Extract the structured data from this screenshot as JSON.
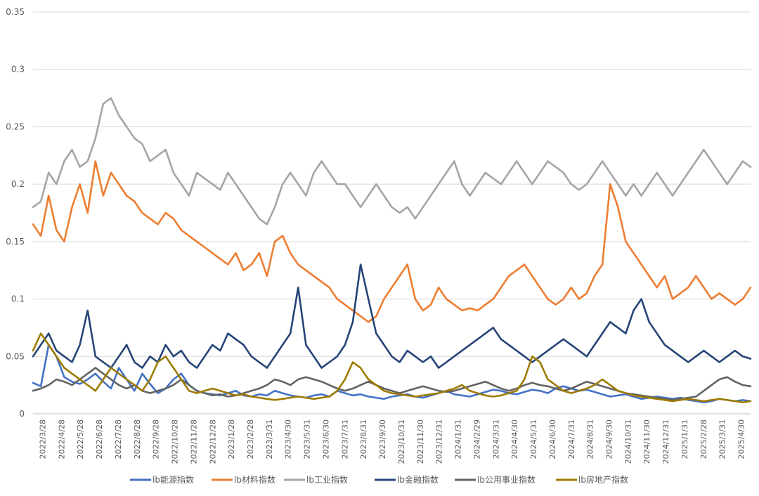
{
  "chart_data": {
    "type": "line",
    "title": "",
    "xlabel": "",
    "ylabel": "",
    "ylim": [
      0,
      0.35
    ],
    "y_ticks": [
      "0",
      "0.05",
      "0.1",
      "0.15",
      "0.2",
      "0.25",
      "0.3",
      "0.35"
    ],
    "x_tick_labels": [
      "2022/3/28",
      "2022/4/28",
      "2022/5/28",
      "2022/6/28",
      "2022/7/28",
      "2022/8/28",
      "2022/9/28",
      "2022/10/28",
      "2022/11/28",
      "2022/12/28",
      "2023/1/28",
      "2023/2/28",
      "2023/3/31",
      "2023/4/30",
      "2023/5/31",
      "2023/6/30",
      "2023/7/31",
      "2023/8/31",
      "2023/9/30",
      "2023/10/31",
      "2023/11/30",
      "2023/12/31",
      "2024/1/31",
      "2024/2/29",
      "2024/3/31",
      "2024/4/30",
      "2024/5/31",
      "2024/6/30",
      "2024/7/31",
      "2024/8/31",
      "2024/9/30",
      "2024/10/31",
      "2024/11/30",
      "2024/12/31",
      "2025/1/31",
      "2025/2/28",
      "2025/3/31",
      "2025/4/30"
    ],
    "gridlines": "horizontal",
    "legend_position": "bottom",
    "series": [
      {
        "name": "lb能源指数",
        "color": "#4472C4",
        "values": [
          0.027,
          0.024,
          0.06,
          0.05,
          0.032,
          0.028,
          0.026,
          0.03,
          0.035,
          0.028,
          0.022,
          0.04,
          0.03,
          0.02,
          0.035,
          0.026,
          0.018,
          0.022,
          0.03,
          0.035,
          0.025,
          0.02,
          0.018,
          0.017,
          0.016,
          0.018,
          0.02,
          0.016,
          0.015,
          0.017,
          0.016,
          0.02,
          0.018,
          0.016,
          0.015,
          0.014,
          0.016,
          0.017,
          0.015,
          0.02,
          0.018,
          0.016,
          0.017,
          0.015,
          0.014,
          0.013,
          0.015,
          0.016,
          0.017,
          0.015,
          0.014,
          0.016,
          0.018,
          0.02,
          0.017,
          0.016,
          0.015,
          0.017,
          0.019,
          0.021,
          0.02,
          0.018,
          0.017,
          0.019,
          0.021,
          0.02,
          0.018,
          0.022,
          0.024,
          0.022,
          0.02,
          0.021,
          0.019,
          0.017,
          0.015,
          0.016,
          0.017,
          0.015,
          0.013,
          0.014,
          0.015,
          0.014,
          0.013,
          0.014,
          0.012,
          0.011,
          0.01,
          0.011,
          0.013,
          0.012,
          0.011,
          0.012,
          0.011
        ]
      },
      {
        "name": "lb材料指数",
        "color": "#ED7D31",
        "values": [
          0.165,
          0.155,
          0.19,
          0.16,
          0.15,
          0.18,
          0.2,
          0.175,
          0.22,
          0.19,
          0.21,
          0.2,
          0.19,
          0.185,
          0.175,
          0.17,
          0.165,
          0.175,
          0.17,
          0.16,
          0.155,
          0.15,
          0.145,
          0.14,
          0.135,
          0.13,
          0.14,
          0.125,
          0.13,
          0.14,
          0.12,
          0.15,
          0.155,
          0.14,
          0.13,
          0.125,
          0.12,
          0.115,
          0.11,
          0.1,
          0.095,
          0.09,
          0.085,
          0.08,
          0.085,
          0.1,
          0.11,
          0.12,
          0.13,
          0.1,
          0.09,
          0.095,
          0.11,
          0.1,
          0.095,
          0.09,
          0.092,
          0.09,
          0.095,
          0.1,
          0.11,
          0.12,
          0.125,
          0.13,
          0.12,
          0.11,
          0.1,
          0.095,
          0.1,
          0.11,
          0.1,
          0.105,
          0.12,
          0.13,
          0.2,
          0.18,
          0.15,
          0.14,
          0.13,
          0.12,
          0.11,
          0.12,
          0.1,
          0.105,
          0.11,
          0.12,
          0.11,
          0.1,
          0.105,
          0.1,
          0.095,
          0.1,
          0.11
        ]
      },
      {
        "name": "lb工业指数",
        "color": "#A5A5A5",
        "values": [
          0.18,
          0.185,
          0.21,
          0.2,
          0.22,
          0.23,
          0.215,
          0.22,
          0.24,
          0.27,
          0.275,
          0.26,
          0.25,
          0.24,
          0.235,
          0.22,
          0.225,
          0.23,
          0.21,
          0.2,
          0.19,
          0.21,
          0.205,
          0.2,
          0.195,
          0.21,
          0.2,
          0.19,
          0.18,
          0.17,
          0.165,
          0.18,
          0.2,
          0.21,
          0.2,
          0.19,
          0.21,
          0.22,
          0.21,
          0.2,
          0.2,
          0.19,
          0.18,
          0.19,
          0.2,
          0.19,
          0.18,
          0.175,
          0.18,
          0.17,
          0.18,
          0.19,
          0.2,
          0.21,
          0.22,
          0.2,
          0.19,
          0.2,
          0.21,
          0.205,
          0.2,
          0.21,
          0.22,
          0.21,
          0.2,
          0.21,
          0.22,
          0.215,
          0.21,
          0.2,
          0.195,
          0.2,
          0.21,
          0.22,
          0.21,
          0.2,
          0.19,
          0.2,
          0.19,
          0.2,
          0.21,
          0.2,
          0.19,
          0.2,
          0.21,
          0.22,
          0.23,
          0.22,
          0.21,
          0.2,
          0.21,
          0.22,
          0.215
        ]
      },
      {
        "name": "lb金融指数",
        "color": "#264478",
        "values": [
          0.05,
          0.06,
          0.07,
          0.055,
          0.05,
          0.045,
          0.06,
          0.09,
          0.05,
          0.045,
          0.04,
          0.05,
          0.06,
          0.045,
          0.04,
          0.05,
          0.045,
          0.06,
          0.05,
          0.055,
          0.045,
          0.04,
          0.05,
          0.06,
          0.055,
          0.07,
          0.065,
          0.06,
          0.05,
          0.045,
          0.04,
          0.05,
          0.06,
          0.07,
          0.11,
          0.06,
          0.05,
          0.04,
          0.045,
          0.05,
          0.06,
          0.08,
          0.13,
          0.1,
          0.07,
          0.06,
          0.05,
          0.045,
          0.055,
          0.05,
          0.045,
          0.05,
          0.04,
          0.045,
          0.05,
          0.055,
          0.06,
          0.065,
          0.07,
          0.075,
          0.065,
          0.06,
          0.055,
          0.05,
          0.045,
          0.05,
          0.055,
          0.06,
          0.065,
          0.06,
          0.055,
          0.05,
          0.06,
          0.07,
          0.08,
          0.075,
          0.07,
          0.09,
          0.1,
          0.08,
          0.07,
          0.06,
          0.055,
          0.05,
          0.045,
          0.05,
          0.055,
          0.05,
          0.045,
          0.05,
          0.055,
          0.05,
          0.048
        ]
      },
      {
        "name": "lb公用事业指数",
        "color": "#636363",
        "values": [
          0.02,
          0.022,
          0.025,
          0.03,
          0.028,
          0.025,
          0.03,
          0.035,
          0.04,
          0.035,
          0.03,
          0.025,
          0.022,
          0.025,
          0.02,
          0.018,
          0.02,
          0.022,
          0.025,
          0.03,
          0.025,
          0.02,
          0.018,
          0.016,
          0.017,
          0.015,
          0.016,
          0.018,
          0.02,
          0.022,
          0.025,
          0.03,
          0.028,
          0.025,
          0.03,
          0.032,
          0.03,
          0.028,
          0.025,
          0.022,
          0.02,
          0.022,
          0.025,
          0.028,
          0.025,
          0.022,
          0.02,
          0.018,
          0.02,
          0.022,
          0.024,
          0.022,
          0.02,
          0.019,
          0.02,
          0.022,
          0.024,
          0.026,
          0.028,
          0.025,
          0.022,
          0.02,
          0.022,
          0.025,
          0.027,
          0.025,
          0.024,
          0.022,
          0.02,
          0.022,
          0.025,
          0.028,
          0.026,
          0.024,
          0.022,
          0.02,
          0.018,
          0.017,
          0.016,
          0.015,
          0.014,
          0.013,
          0.012,
          0.013,
          0.014,
          0.015,
          0.02,
          0.025,
          0.03,
          0.032,
          0.028,
          0.025,
          0.024
        ]
      },
      {
        "name": "lb房地产指数",
        "color": "#9E7B00",
        "values": [
          0.055,
          0.07,
          0.06,
          0.05,
          0.04,
          0.035,
          0.03,
          0.025,
          0.02,
          0.03,
          0.04,
          0.035,
          0.03,
          0.025,
          0.02,
          0.03,
          0.045,
          0.05,
          0.04,
          0.03,
          0.02,
          0.018,
          0.02,
          0.022,
          0.02,
          0.018,
          0.016,
          0.017,
          0.015,
          0.014,
          0.013,
          0.012,
          0.013,
          0.014,
          0.015,
          0.014,
          0.013,
          0.014,
          0.015,
          0.02,
          0.03,
          0.045,
          0.04,
          0.03,
          0.025,
          0.02,
          0.018,
          0.017,
          0.016,
          0.015,
          0.016,
          0.017,
          0.018,
          0.02,
          0.022,
          0.025,
          0.02,
          0.018,
          0.016,
          0.015,
          0.016,
          0.018,
          0.02,
          0.03,
          0.05,
          0.045,
          0.03,
          0.025,
          0.02,
          0.018,
          0.02,
          0.022,
          0.025,
          0.03,
          0.025,
          0.02,
          0.018,
          0.016,
          0.015,
          0.014,
          0.013,
          0.012,
          0.011,
          0.012,
          0.013,
          0.012,
          0.011,
          0.012,
          0.013,
          0.012,
          0.011,
          0.01,
          0.011
        ]
      }
    ]
  }
}
